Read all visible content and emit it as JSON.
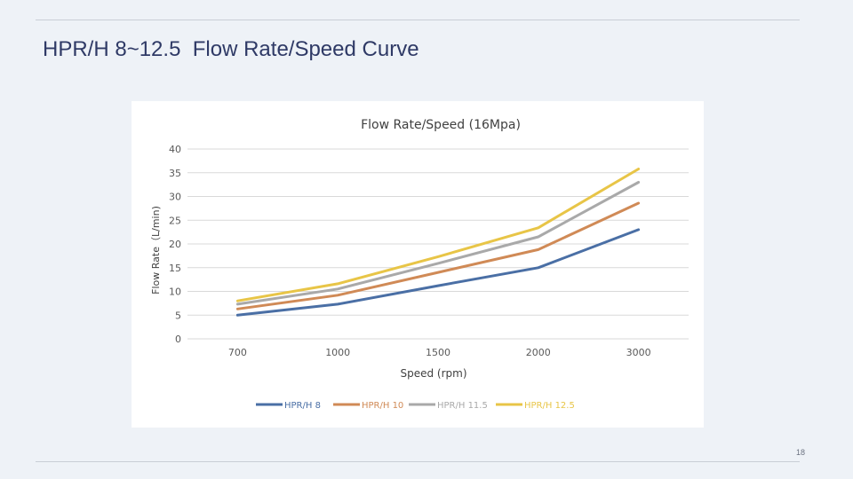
{
  "slide": {
    "title": "HPR/H 8~12.5  Flow Rate/Speed Curve",
    "page_number": "18"
  },
  "chart_data": {
    "type": "line",
    "title": "Flow Rate/Speed (16Mpa)",
    "xlabel": "Speed (rpm)",
    "ylabel": "Flow Rate（L/min)",
    "categories": [
      "700",
      "1000",
      "1500",
      "2000",
      "3000"
    ],
    "ylim": [
      0,
      40
    ],
    "yticks": [
      0,
      5,
      10,
      15,
      20,
      25,
      30,
      35,
      40
    ],
    "grid": true,
    "legend_position": "bottom",
    "series": [
      {
        "name": "HPR/H 8",
        "color": "#4a6fa5",
        "values": [
          5.0,
          7.3,
          11.2,
          15.0,
          23.0
        ]
      },
      {
        "name": "HPR/H 10",
        "color": "#d08a56",
        "values": [
          6.3,
          9.2,
          14.0,
          18.8,
          28.6
        ]
      },
      {
        "name": "HPR/H 11.5",
        "color": "#a9a9a9",
        "values": [
          7.3,
          10.5,
          15.9,
          21.5,
          33.0
        ]
      },
      {
        "name": "HPR/H 12.5",
        "color": "#e8c547",
        "values": [
          8.0,
          11.6,
          17.3,
          23.4,
          35.8
        ]
      }
    ]
  }
}
